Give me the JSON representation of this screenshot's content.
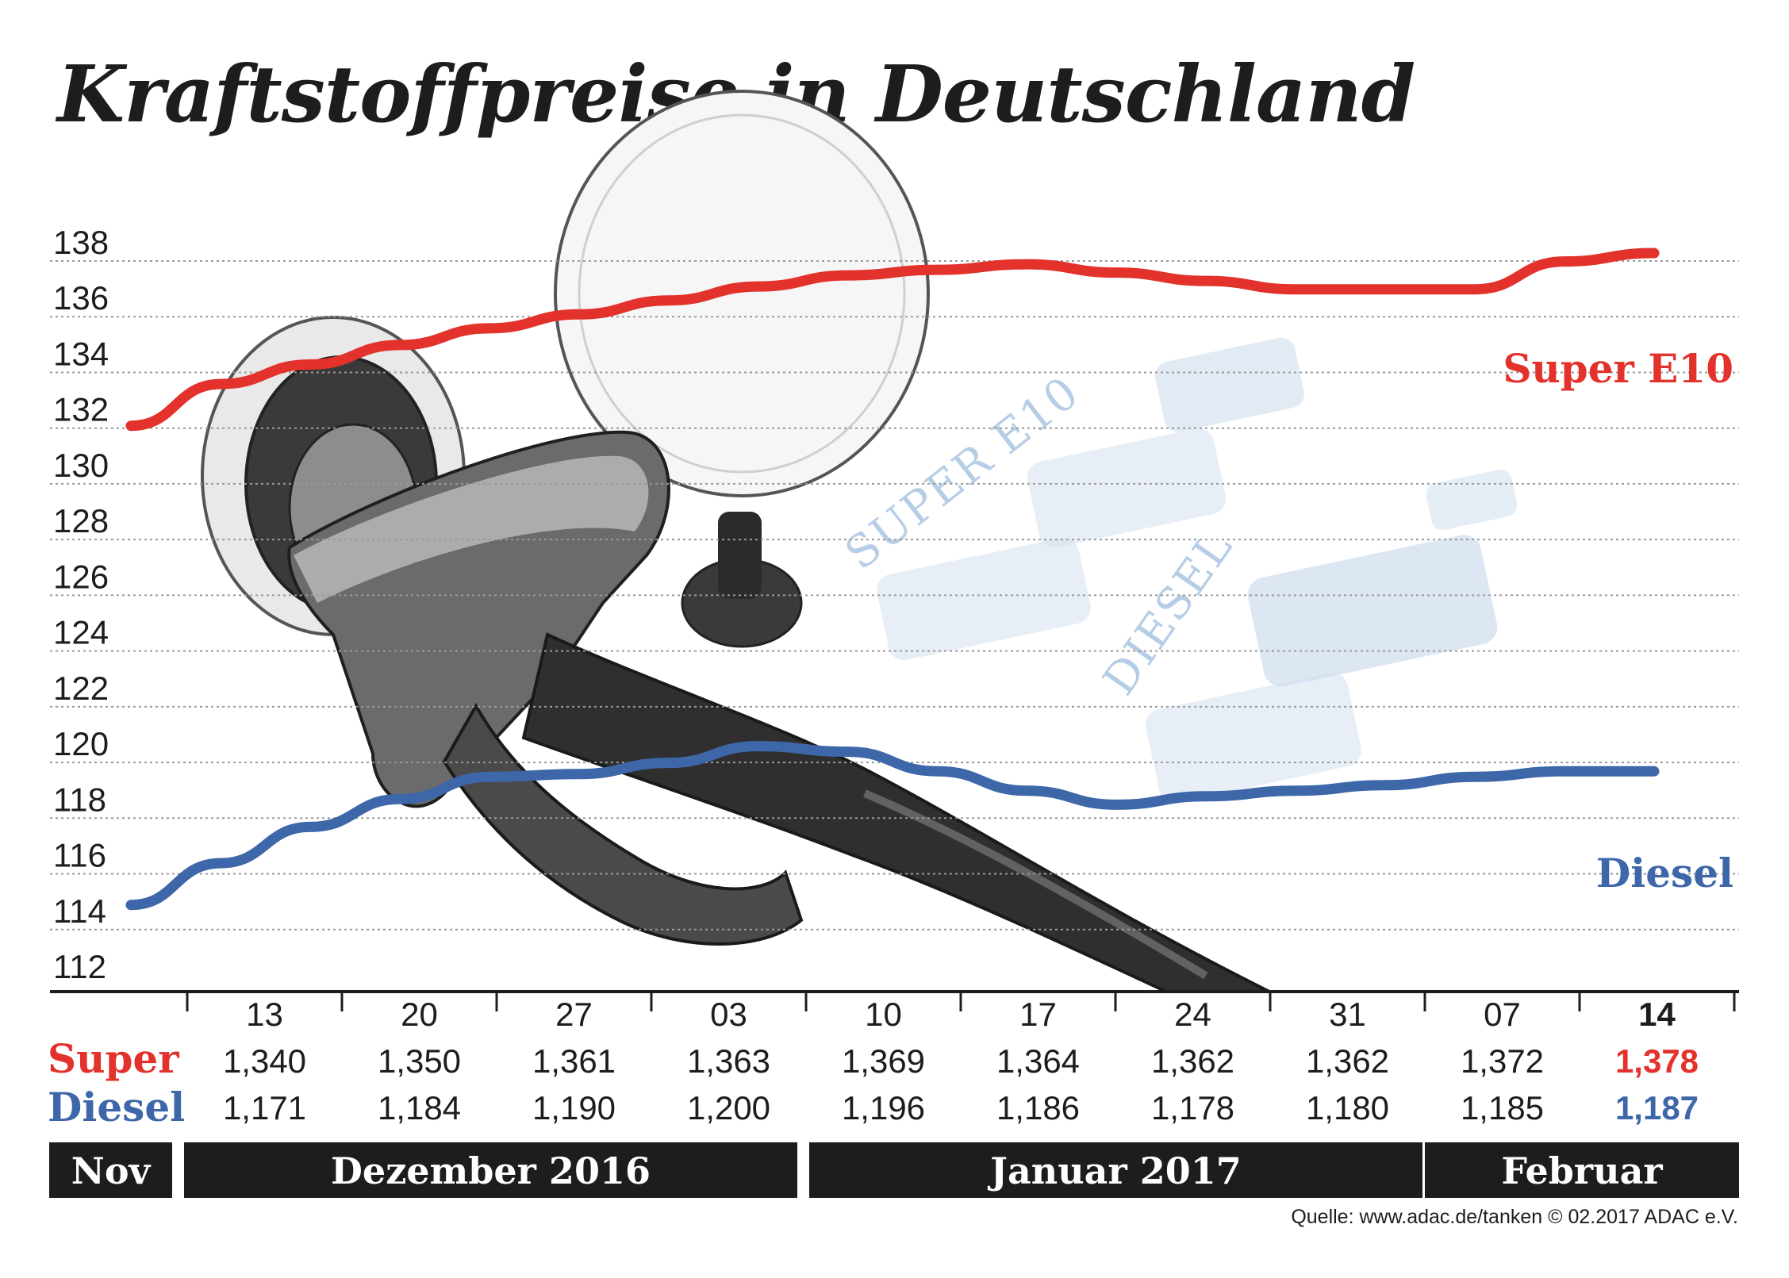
{
  "title": "Kraftstoffpreise in Deutschland",
  "source": "Quelle: www.adac.de/tanken  © 02.2017  ADAC e.V.",
  "colors": {
    "super": "#e3312b",
    "diesel": "#3d67a8",
    "text": "#1d1d1b",
    "grid": "#9a9a9a",
    "month_bar": "#1d1d1b",
    "decoration": "#a9c4e2"
  },
  "decoration": {
    "super_text": "SUPER E10",
    "diesel_text": "DIESEL"
  },
  "chart_data": {
    "type": "line",
    "title": "Kraftstoffpreise in Deutschland",
    "ylim": [
      112,
      138
    ],
    "yticks": [
      112,
      114,
      116,
      118,
      120,
      122,
      124,
      126,
      128,
      130,
      132,
      134,
      136,
      138
    ],
    "grid": true,
    "categories": [
      "13",
      "20",
      "27",
      "03",
      "10",
      "17",
      "24",
      "31",
      "07",
      "14"
    ],
    "months": [
      "Nov",
      "Dezember 2016",
      "Januar 2017",
      "Februar"
    ],
    "series": [
      {
        "name": "Super E10",
        "color": "#e3312b",
        "line_points": [
          131.4,
          132.9,
          133.6,
          134.3,
          134.9,
          135.4,
          135.9,
          136.4,
          136.8,
          137.0,
          137.2,
          136.9,
          136.6,
          136.3,
          136.3,
          136.3,
          137.3,
          137.6
        ],
        "row_label": "Super",
        "values": [
          "1,340",
          "1,350",
          "1,361",
          "1,363",
          "1,369",
          "1,364",
          "1,362",
          "1,362",
          "1,372",
          "1,378"
        ]
      },
      {
        "name": "Diesel",
        "color": "#3d67a8",
        "line_points": [
          114.2,
          115.7,
          117.0,
          118.0,
          118.8,
          118.9,
          119.3,
          119.9,
          119.7,
          119.0,
          118.3,
          117.8,
          118.1,
          118.3,
          118.5,
          118.8,
          119.0,
          119.0
        ],
        "row_label": "Diesel",
        "values": [
          "1,171",
          "1,184",
          "1,190",
          "1,200",
          "1,196",
          "1,186",
          "1,178",
          "1,180",
          "1,185",
          "1,187"
        ]
      }
    ],
    "highlight_last": true
  }
}
